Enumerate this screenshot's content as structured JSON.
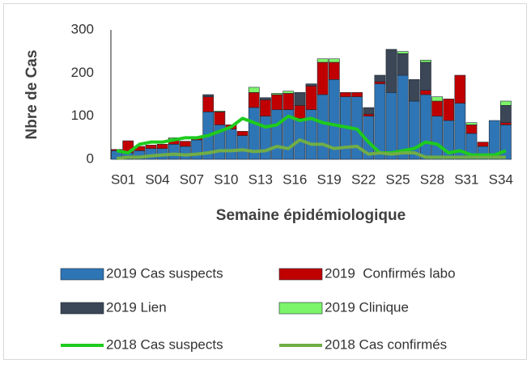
{
  "chart_data": {
    "type": "bar",
    "stacked": true,
    "y_label": "Nbre de Cas",
    "x_label": "Semaine épidémiologique",
    "categories": [
      "S01",
      null,
      null,
      "S04",
      null,
      null,
      "S07",
      null,
      null,
      "S10",
      null,
      null,
      "S13",
      null,
      null,
      "S16",
      null,
      null,
      "S19",
      null,
      null,
      "S22",
      null,
      null,
      "S25",
      null,
      null,
      "S28",
      null,
      null,
      "S31",
      null,
      null,
      "S34",
      null
    ],
    "ylim": [
      0,
      300
    ],
    "yticks": [
      0,
      100,
      200,
      300
    ],
    "grid": false,
    "series": [
      {
        "name": "2019 Cas suspects",
        "type": "bar",
        "color": "#2e75b6",
        "values": [
          20,
          15,
          20,
          25,
          25,
          35,
          30,
          45,
          110,
          80,
          70,
          55,
          120,
          100,
          115,
          115,
          95,
          115,
          150,
          185,
          145,
          145,
          100,
          175,
          155,
          195,
          135,
          150,
          100,
          90,
          130,
          60,
          30,
          90,
          80
        ]
      },
      {
        "name": "2019  Confirmés labo",
        "type": "bar",
        "color": "#c00000",
        "values": [
          3,
          28,
          10,
          8,
          10,
          12,
          12,
          5,
          35,
          30,
          10,
          10,
          35,
          38,
          35,
          38,
          30,
          55,
          75,
          40,
          10,
          10,
          5,
          5,
          0,
          0,
          0,
          10,
          35,
          50,
          65,
          20,
          10,
          0,
          5
        ]
      },
      {
        "name": "2019 Lien",
        "type": "bar",
        "color": "#3b4656",
        "values": [
          0,
          0,
          0,
          0,
          0,
          0,
          0,
          0,
          5,
          0,
          0,
          0,
          0,
          5,
          0,
          0,
          30,
          5,
          0,
          0,
          0,
          0,
          15,
          15,
          100,
          50,
          50,
          65,
          0,
          0,
          0,
          0,
          0,
          0,
          40
        ]
      },
      {
        "name": "2019 Clinique",
        "type": "bar",
        "color": "#7cf56a",
        "values": [
          0,
          0,
          0,
          0,
          0,
          3,
          0,
          0,
          0,
          2,
          0,
          0,
          12,
          0,
          3,
          5,
          0,
          0,
          8,
          8,
          0,
          0,
          0,
          0,
          0,
          5,
          0,
          5,
          10,
          0,
          0,
          5,
          0,
          0,
          10
        ]
      },
      {
        "name": "2018 Cas suspects",
        "type": "line",
        "color": "#1ecb1e",
        "values": [
          20,
          15,
          35,
          40,
          40,
          45,
          50,
          50,
          55,
          65,
          75,
          95,
          85,
          75,
          80,
          100,
          90,
          95,
          85,
          80,
          75,
          70,
          40,
          15,
          15,
          20,
          25,
          40,
          35,
          15,
          20,
          10,
          10,
          10,
          20
        ]
      },
      {
        "name": "2018 Cas confirmés",
        "type": "line",
        "color": "#70ad47",
        "values": [
          2,
          5,
          5,
          8,
          10,
          12,
          10,
          12,
          15,
          20,
          20,
          22,
          18,
          20,
          30,
          25,
          45,
          35,
          35,
          25,
          28,
          30,
          12,
          15,
          12,
          15,
          15,
          5,
          5,
          5,
          5,
          5,
          5,
          5,
          5
        ]
      }
    ]
  }
}
